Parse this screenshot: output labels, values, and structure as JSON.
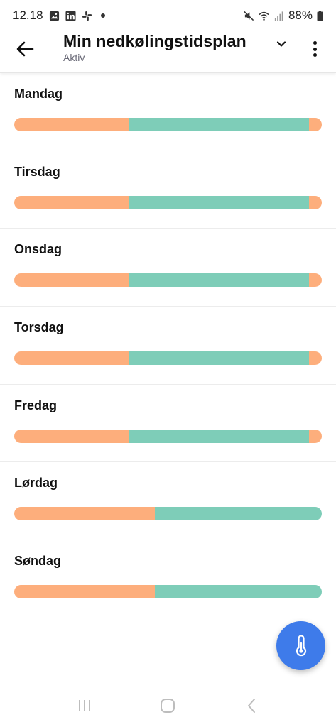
{
  "status_bar": {
    "time": "12.18",
    "battery": "88%",
    "icons": [
      "gallery-icon",
      "linkedin-icon",
      "slack-icon",
      "notification-dot-icon",
      "mute-icon",
      "wifi-icon",
      "signal-icon",
      "battery-icon"
    ]
  },
  "header": {
    "title": "Min nedkølingstidsplan",
    "subtitle": "Aktiv",
    "icons": [
      "back-arrow-icon",
      "chevron-down-icon",
      "more-vert-icon"
    ]
  },
  "colors": {
    "warm": "#FDAE7C",
    "cool": "#7ECDB8",
    "fab": "#3E7BEA"
  },
  "days": [
    {
      "label": "Mandag",
      "segments": [
        {
          "type": "warm",
          "fraction": 0.375
        },
        {
          "type": "cool",
          "fraction": 0.583
        },
        {
          "type": "warm",
          "fraction": 0.042
        }
      ]
    },
    {
      "label": "Tirsdag",
      "segments": [
        {
          "type": "warm",
          "fraction": 0.375
        },
        {
          "type": "cool",
          "fraction": 0.583
        },
        {
          "type": "warm",
          "fraction": 0.042
        }
      ]
    },
    {
      "label": "Onsdag",
      "segments": [
        {
          "type": "warm",
          "fraction": 0.375
        },
        {
          "type": "cool",
          "fraction": 0.583
        },
        {
          "type": "warm",
          "fraction": 0.042
        }
      ]
    },
    {
      "label": "Torsdag",
      "segments": [
        {
          "type": "warm",
          "fraction": 0.375
        },
        {
          "type": "cool",
          "fraction": 0.583
        },
        {
          "type": "warm",
          "fraction": 0.042
        }
      ]
    },
    {
      "label": "Fredag",
      "segments": [
        {
          "type": "warm",
          "fraction": 0.375
        },
        {
          "type": "cool",
          "fraction": 0.583
        },
        {
          "type": "warm",
          "fraction": 0.042
        }
      ]
    },
    {
      "label": "Lørdag",
      "segments": [
        {
          "type": "warm",
          "fraction": 0.458
        },
        {
          "type": "cool",
          "fraction": 0.542
        }
      ]
    },
    {
      "label": "Søndag",
      "segments": [
        {
          "type": "warm",
          "fraction": 0.458
        },
        {
          "type": "cool",
          "fraction": 0.542
        }
      ]
    }
  ],
  "fab": {
    "icon": "thermometer-icon"
  },
  "nav_bar": {
    "icons": [
      "recent-apps-icon",
      "home-icon",
      "back-nav-icon"
    ]
  }
}
